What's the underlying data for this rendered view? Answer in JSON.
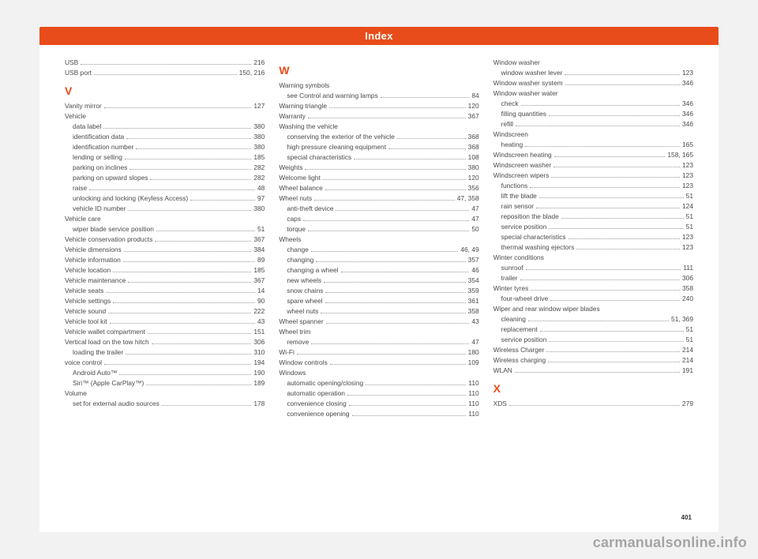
{
  "header": {
    "title": "Index"
  },
  "page_number": "401",
  "watermark": "carmanualsonline.info",
  "colors": {
    "accent": "#e84c1a",
    "page_bg": "#ffffff",
    "body_bg": "#f2f2f2",
    "text": "#4a4a4a",
    "dots": "#9a9a9a"
  },
  "typography": {
    "body_fontsize_pt": 8.4,
    "header_fontsize_pt": 13,
    "letter_fontsize_pt": 14,
    "pagenum_fontsize_pt": 8,
    "watermark_fontsize_pt": 18,
    "font_family": "Arial, Helvetica, sans-serif"
  },
  "columns": [
    [
      {
        "t": "entry",
        "label": "USB",
        "page": "216"
      },
      {
        "t": "entry",
        "label": "USB port",
        "page": "150, 216"
      },
      {
        "t": "letter",
        "label": "V"
      },
      {
        "t": "entry",
        "label": "Vanity mirror",
        "page": "127"
      },
      {
        "t": "header",
        "label": "Vehicle"
      },
      {
        "t": "entry",
        "sub": true,
        "label": "data label",
        "page": "380"
      },
      {
        "t": "entry",
        "sub": true,
        "label": "identification data",
        "page": "380"
      },
      {
        "t": "entry",
        "sub": true,
        "label": "identification number",
        "page": "380"
      },
      {
        "t": "entry",
        "sub": true,
        "label": "lending or selling",
        "page": "185"
      },
      {
        "t": "entry",
        "sub": true,
        "label": "parking on inclines",
        "page": "282"
      },
      {
        "t": "entry",
        "sub": true,
        "label": "parking on upward slopes",
        "page": "282"
      },
      {
        "t": "entry",
        "sub": true,
        "label": "raise",
        "page": "48"
      },
      {
        "t": "entry",
        "sub": true,
        "label": "unlocking and locking (Keyless Access)",
        "page": "97"
      },
      {
        "t": "entry",
        "sub": true,
        "label": "vehicle ID number",
        "page": "380"
      },
      {
        "t": "header",
        "label": "Vehicle care"
      },
      {
        "t": "entry",
        "sub": true,
        "label": "wiper blade service position",
        "page": "51"
      },
      {
        "t": "entry",
        "label": "Vehicle conservation products",
        "page": "367"
      },
      {
        "t": "entry",
        "label": "Vehicle dimensions",
        "page": "384"
      },
      {
        "t": "entry",
        "label": "Vehicle information",
        "page": "89"
      },
      {
        "t": "entry",
        "label": "Vehicle location",
        "page": "185"
      },
      {
        "t": "entry",
        "label": "Vehicle maintenance",
        "page": "367"
      },
      {
        "t": "entry",
        "label": "Vehicle seats",
        "page": "14"
      },
      {
        "t": "entry",
        "label": "Vehicle settings",
        "page": "90"
      },
      {
        "t": "entry",
        "label": "Vehicle sound",
        "page": "222"
      },
      {
        "t": "entry",
        "label": "Vehicle tool kit",
        "page": "43"
      },
      {
        "t": "entry",
        "label": "Vehicle wallet compartment",
        "page": "151"
      },
      {
        "t": "entry",
        "label": "Vertical load on the tow hitch",
        "page": "306"
      },
      {
        "t": "entry",
        "sub": true,
        "label": "loading the trailer",
        "page": "310"
      },
      {
        "t": "entry",
        "label": "voice control",
        "page": "194"
      },
      {
        "t": "entry",
        "sub": true,
        "label": "Android Auto™",
        "page": "190"
      },
      {
        "t": "entry",
        "sub": true,
        "label": "Siri™ (Apple CarPlay™)",
        "page": "189"
      },
      {
        "t": "header",
        "label": "Volume"
      },
      {
        "t": "entry",
        "sub": true,
        "label": "set for external audio sources",
        "page": "178"
      }
    ],
    [
      {
        "t": "letter",
        "label": "W"
      },
      {
        "t": "header",
        "label": "Warning symbols"
      },
      {
        "t": "entry",
        "sub": true,
        "label": "see Control and warning lamps",
        "page": "84"
      },
      {
        "t": "entry",
        "label": "Warning triangle",
        "page": "120"
      },
      {
        "t": "entry",
        "label": "Warranty",
        "page": "367"
      },
      {
        "t": "header",
        "label": "Washing the vehicle"
      },
      {
        "t": "entry",
        "sub": true,
        "label": "conserving the exterior of the vehicle",
        "page": "368"
      },
      {
        "t": "entry",
        "sub": true,
        "label": "high pressure cleaning equipment",
        "page": "368"
      },
      {
        "t": "entry",
        "sub": true,
        "label": "special characteristics",
        "page": "108"
      },
      {
        "t": "entry",
        "label": "Weights",
        "page": "380"
      },
      {
        "t": "entry",
        "label": "Welcome light",
        "page": "120"
      },
      {
        "t": "entry",
        "label": "Wheel balance",
        "page": "356"
      },
      {
        "t": "entry",
        "label": "Wheel nuts",
        "page": "47, 358"
      },
      {
        "t": "entry",
        "sub": true,
        "label": "anti-theft device",
        "page": "47"
      },
      {
        "t": "entry",
        "sub": true,
        "label": "caps",
        "page": "47"
      },
      {
        "t": "entry",
        "sub": true,
        "label": "torque",
        "page": "50"
      },
      {
        "t": "header",
        "label": "Wheels"
      },
      {
        "t": "entry",
        "sub": true,
        "label": "change",
        "page": "46, 49"
      },
      {
        "t": "entry",
        "sub": true,
        "label": "changing",
        "page": "357"
      },
      {
        "t": "entry",
        "sub": true,
        "label": "changing a wheel",
        "page": "46"
      },
      {
        "t": "entry",
        "sub": true,
        "label": "new wheels",
        "page": "354"
      },
      {
        "t": "entry",
        "sub": true,
        "label": "snow chains",
        "page": "359"
      },
      {
        "t": "entry",
        "sub": true,
        "label": "spare wheel",
        "page": "361"
      },
      {
        "t": "entry",
        "sub": true,
        "label": "wheel nuts",
        "page": "358"
      },
      {
        "t": "entry",
        "label": "Wheel spanner",
        "page": "43"
      },
      {
        "t": "header",
        "label": "Wheel trim"
      },
      {
        "t": "entry",
        "sub": true,
        "label": "remove",
        "page": "47"
      },
      {
        "t": "entry",
        "label": "Wi-Fi",
        "page": "180"
      },
      {
        "t": "entry",
        "label": "Window controls",
        "page": "109"
      },
      {
        "t": "header",
        "label": "Windows"
      },
      {
        "t": "entry",
        "sub": true,
        "label": "automatic opening/closing",
        "page": "110"
      },
      {
        "t": "entry",
        "sub": true,
        "label": "automatic operation",
        "page": "110"
      },
      {
        "t": "entry",
        "sub": true,
        "label": "convenience closing",
        "page": "110"
      },
      {
        "t": "entry",
        "sub": true,
        "label": "convenience opening",
        "page": "110"
      }
    ],
    [
      {
        "t": "header",
        "label": "Window washer"
      },
      {
        "t": "entry",
        "sub": true,
        "label": "window washer lever",
        "page": "123"
      },
      {
        "t": "entry",
        "label": "Window washer system",
        "page": "346"
      },
      {
        "t": "header",
        "label": "Window washer water"
      },
      {
        "t": "entry",
        "sub": true,
        "label": "check",
        "page": "346"
      },
      {
        "t": "entry",
        "sub": true,
        "label": "filling quantities",
        "page": "346"
      },
      {
        "t": "entry",
        "sub": true,
        "label": "refill",
        "page": "346"
      },
      {
        "t": "header",
        "label": "Windscreen"
      },
      {
        "t": "entry",
        "sub": true,
        "label": "heating",
        "page": "165"
      },
      {
        "t": "entry",
        "label": "Windscreen heating",
        "page": "158, 165"
      },
      {
        "t": "entry",
        "label": "Windscreen washer",
        "page": "123"
      },
      {
        "t": "entry",
        "label": "Windscreen wipers",
        "page": "123"
      },
      {
        "t": "entry",
        "sub": true,
        "label": "functions",
        "page": "123"
      },
      {
        "t": "entry",
        "sub": true,
        "label": "lift the blade",
        "page": "51"
      },
      {
        "t": "entry",
        "sub": true,
        "label": "rain sensor",
        "page": "124"
      },
      {
        "t": "entry",
        "sub": true,
        "label": "reposition the blade",
        "page": "51"
      },
      {
        "t": "entry",
        "sub": true,
        "label": "service position",
        "page": "51"
      },
      {
        "t": "entry",
        "sub": true,
        "label": "special characteristics",
        "page": "123"
      },
      {
        "t": "entry",
        "sub": true,
        "label": "thermal washing ejectors",
        "page": "123"
      },
      {
        "t": "header",
        "label": "Winter conditions"
      },
      {
        "t": "entry",
        "sub": true,
        "label": "sunroof",
        "page": "111"
      },
      {
        "t": "entry",
        "sub": true,
        "label": "trailer",
        "page": "306"
      },
      {
        "t": "entry",
        "label": "Winter tyres",
        "page": "358"
      },
      {
        "t": "entry",
        "sub": true,
        "label": "four-wheel drive",
        "page": "240"
      },
      {
        "t": "header",
        "label": "Wiper and rear window wiper blades"
      },
      {
        "t": "entry",
        "sub": true,
        "label": "cleaning",
        "page": "51, 369"
      },
      {
        "t": "entry",
        "sub": true,
        "label": "replacement",
        "page": "51"
      },
      {
        "t": "entry",
        "sub": true,
        "label": "service position",
        "page": "51"
      },
      {
        "t": "entry",
        "label": "Wireless Charger",
        "page": "214"
      },
      {
        "t": "entry",
        "label": "Wireless charging",
        "page": "214"
      },
      {
        "t": "entry",
        "label": "WLAN",
        "page": "191"
      },
      {
        "t": "letter",
        "label": "X"
      },
      {
        "t": "entry",
        "label": "XDS",
        "page": "279"
      }
    ]
  ]
}
